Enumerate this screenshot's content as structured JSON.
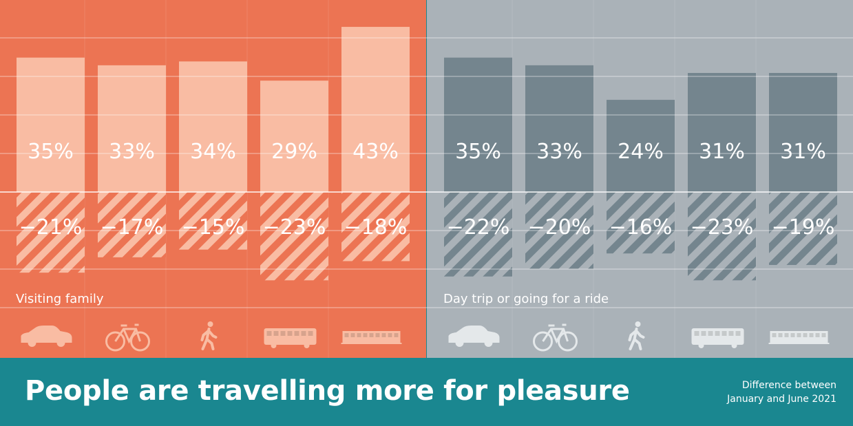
{
  "chart_data": {
    "type": "bar",
    "title": "People are travelling more for pleasure",
    "subtitle": [
      "Difference between",
      "January and June 2021"
    ],
    "categories": [
      "car-icon",
      "bicycle-icon",
      "walking-icon",
      "bus-icon",
      "train-icon"
    ],
    "panels": [
      {
        "label": "Visiting family",
        "values": [
          35,
          33,
          34,
          29,
          43
        ],
        "labels": [
          "35%",
          "33%",
          "34%",
          "29%",
          "43%"
        ],
        "differences": [
          -21,
          -17,
          -15,
          -23,
          -18
        ],
        "difference_labels": [
          "−21%",
          "−17%",
          "−15%",
          "−23%",
          "−18%"
        ],
        "background": "#ec7453",
        "bar_color": "#f9bca3",
        "icon_color": "#f9bca3"
      },
      {
        "label": "Day trip or going for a ride",
        "values": [
          35,
          33,
          24,
          31,
          31
        ],
        "labels": [
          "35%",
          "33%",
          "24%",
          "31%",
          "31%"
        ],
        "differences": [
          -22,
          -20,
          -16,
          -23,
          -19
        ],
        "difference_labels": [
          "−22%",
          "−20%",
          "−16%",
          "−23%",
          "−19%"
        ],
        "background": "#aab2b8",
        "bar_color": "#74858e",
        "icon_color": "#e4e8ea"
      }
    ],
    "baseline": 0,
    "grid": true
  },
  "colors": {
    "footer": "#1a8790",
    "text": "#ffffff"
  }
}
